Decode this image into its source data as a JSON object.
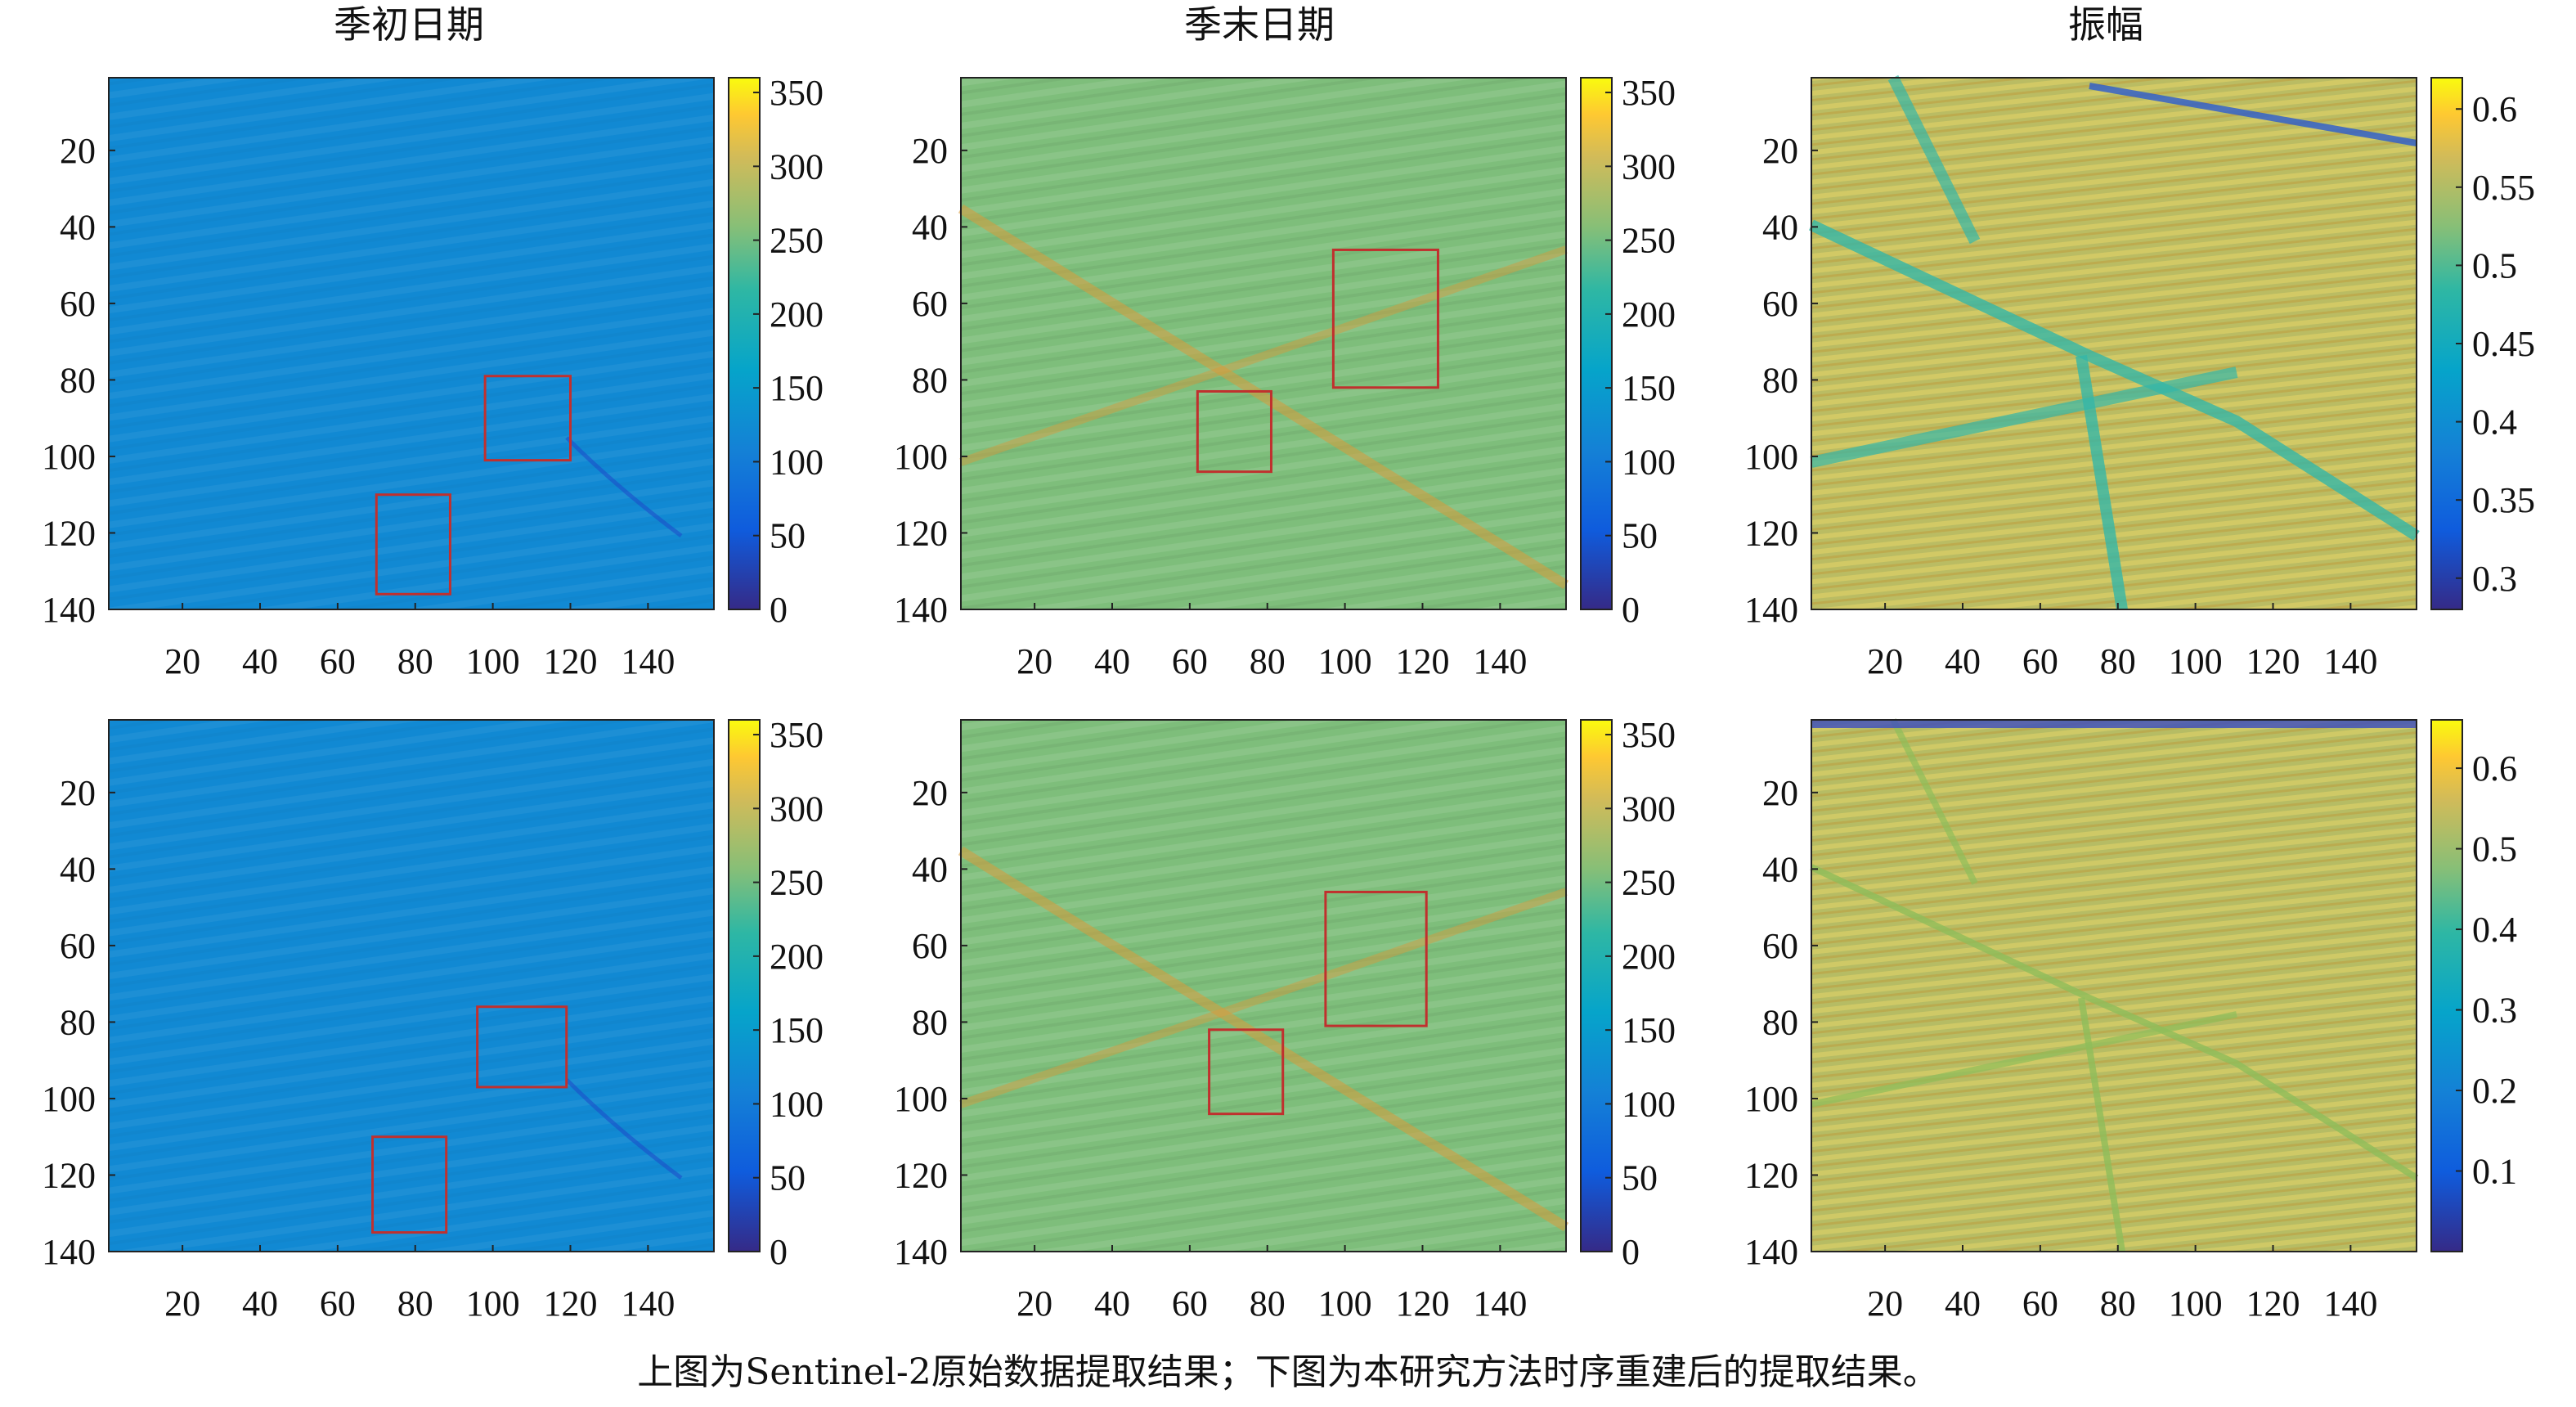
{
  "column_titles": [
    "季初日期",
    "季末日期",
    "振幅"
  ],
  "caption": "上图为Sentinel-2原始数据提取结果；下图为本研究方法时序重建后的提取结果。",
  "chart_data": [
    {
      "type": "heatmap",
      "row": "top",
      "title": "季初日期",
      "xticks": [
        20,
        40,
        60,
        80,
        100,
        120,
        140
      ],
      "yticks": [
        20,
        40,
        60,
        80,
        100,
        120,
        140
      ],
      "xlim": [
        1,
        157
      ],
      "ylim": [
        1,
        140
      ],
      "colorbar": {
        "min": 0,
        "max": 360,
        "ticks": [
          0,
          50,
          100,
          150,
          200,
          250,
          300,
          350
        ]
      },
      "dominant_value": 120,
      "boxes": [
        {
          "x": [
            98,
            120
          ],
          "y": [
            79,
            101
          ]
        },
        {
          "x": [
            70,
            89
          ],
          "y": [
            110,
            136
          ]
        }
      ]
    },
    {
      "type": "heatmap",
      "row": "top",
      "title": "季末日期",
      "xticks": [
        20,
        40,
        60,
        80,
        100,
        120,
        140
      ],
      "yticks": [
        20,
        40,
        60,
        80,
        100,
        120,
        140
      ],
      "xlim": [
        1,
        157
      ],
      "ylim": [
        1,
        140
      ],
      "colorbar": {
        "min": 0,
        "max": 360,
        "ticks": [
          0,
          50,
          100,
          150,
          200,
          250,
          300,
          350
        ]
      },
      "dominant_value": 255,
      "boxes": [
        {
          "x": [
            97,
            124
          ],
          "y": [
            46,
            82
          ]
        },
        {
          "x": [
            62,
            81
          ],
          "y": [
            83,
            104
          ]
        }
      ]
    },
    {
      "type": "heatmap",
      "row": "top",
      "title": "振幅",
      "xticks": [
        20,
        40,
        60,
        80,
        100,
        120,
        140
      ],
      "yticks": [
        20,
        40,
        60,
        80,
        100,
        120,
        140
      ],
      "xlim": [
        1,
        157
      ],
      "ylim": [
        1,
        140
      ],
      "colorbar": {
        "min": 0.28,
        "max": 0.62,
        "ticks": [
          0.3,
          0.35,
          0.4,
          0.45,
          0.5,
          0.55,
          0.6
        ]
      },
      "dominant_value": 0.555,
      "boxes": []
    },
    {
      "type": "heatmap",
      "row": "bottom",
      "xticks": [
        20,
        40,
        60,
        80,
        100,
        120,
        140
      ],
      "yticks": [
        20,
        40,
        60,
        80,
        100,
        120,
        140
      ],
      "xlim": [
        1,
        157
      ],
      "ylim": [
        1,
        140
      ],
      "colorbar": {
        "min": 0,
        "max": 360,
        "ticks": [
          0,
          50,
          100,
          150,
          200,
          250,
          300,
          350
        ]
      },
      "dominant_value": 120,
      "boxes": [
        {
          "x": [
            96,
            119
          ],
          "y": [
            76,
            97
          ]
        },
        {
          "x": [
            69,
            88
          ],
          "y": [
            110,
            135
          ]
        }
      ]
    },
    {
      "type": "heatmap",
      "row": "bottom",
      "xticks": [
        20,
        40,
        60,
        80,
        100,
        120,
        140
      ],
      "yticks": [
        20,
        40,
        60,
        80,
        100,
        120,
        140
      ],
      "xlim": [
        1,
        157
      ],
      "ylim": [
        1,
        140
      ],
      "colorbar": {
        "min": 0,
        "max": 360,
        "ticks": [
          0,
          50,
          100,
          150,
          200,
          250,
          300,
          350
        ]
      },
      "dominant_value": 255,
      "boxes": [
        {
          "x": [
            95,
            121
          ],
          "y": [
            46,
            81
          ]
        },
        {
          "x": [
            65,
            84
          ],
          "y": [
            82,
            104
          ]
        }
      ]
    },
    {
      "type": "heatmap",
      "row": "bottom",
      "xticks": [
        20,
        40,
        60,
        80,
        100,
        120,
        140
      ],
      "yticks": [
        20,
        40,
        60,
        80,
        100,
        120,
        140
      ],
      "xlim": [
        1,
        157
      ],
      "ylim": [
        1,
        140
      ],
      "colorbar": {
        "min": 0,
        "max": 0.66,
        "ticks": [
          0.1,
          0.2,
          0.3,
          0.4,
          0.5,
          0.6
        ]
      },
      "dominant_value": 0.53,
      "boxes": []
    }
  ]
}
